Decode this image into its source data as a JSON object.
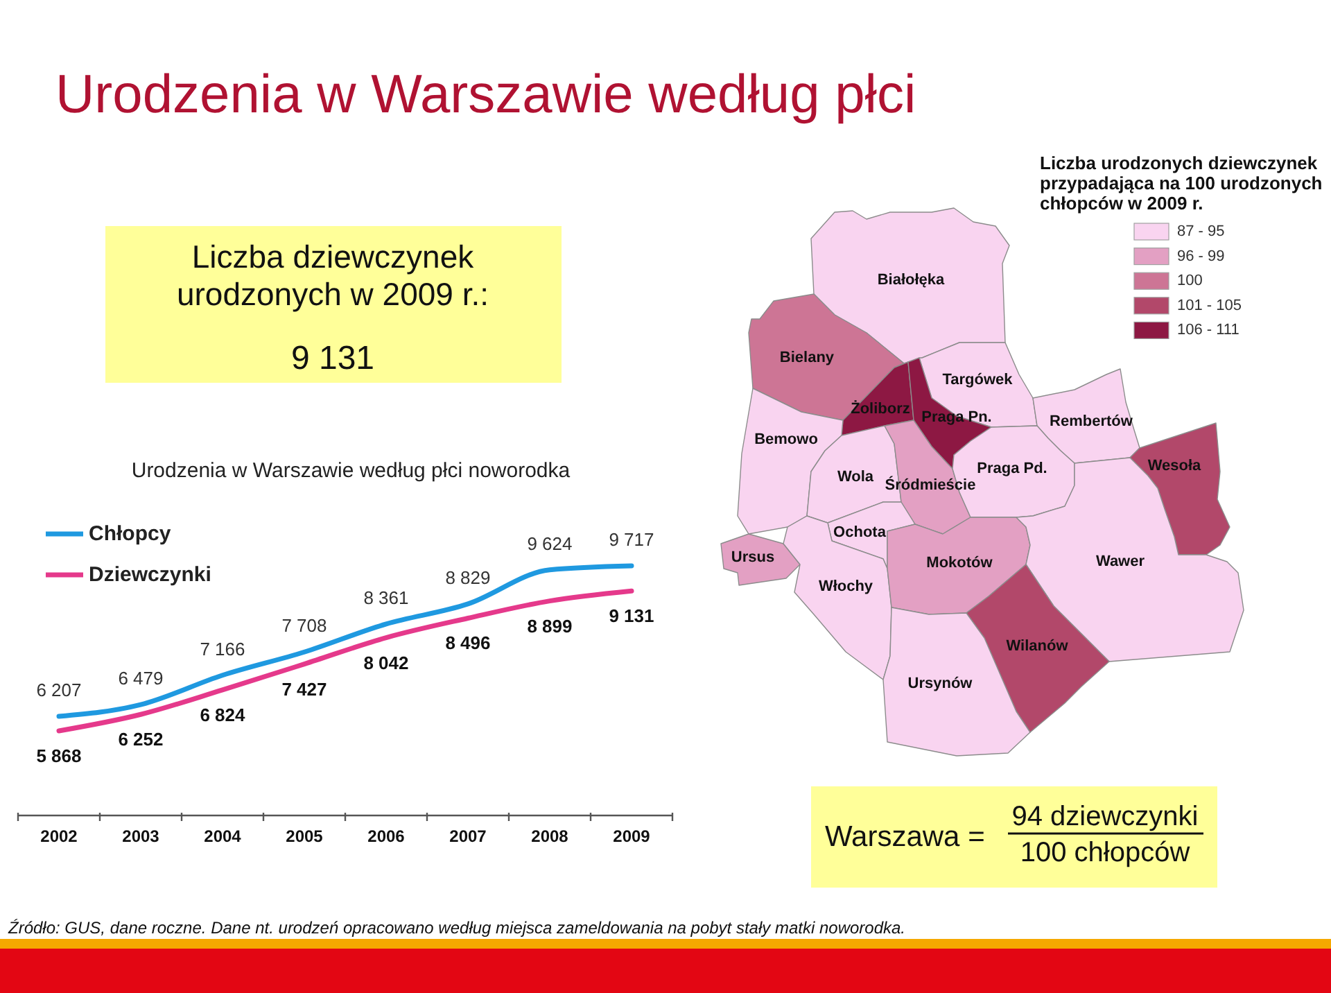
{
  "chart_data": [
    {
      "type": "other",
      "title": "Urodzenia w Warszawie według płci",
      "annotations": [
        "Źródło: GUS, dane roczne. Dane nt. urodzeń opracowano według miejsca zameldowania na pobyt stały matki noworodka."
      ]
    },
    {
      "type": "other",
      "title": "Liczba dziewczynek urodzonych w 2009 r.:",
      "annotations": [
        "9 131"
      ]
    },
    {
      "type": "other",
      "title": "Liczba urodzonych dziewczynek przypadająca na 100 urodzonych chłopców w 2009 r.",
      "categories": [
        "87 - 95",
        "96 - 99",
        "100",
        "101 - 105",
        "106 - 111"
      ],
      "colors": [
        "#f9d4f0",
        "#e3a0c3",
        "#cd7595",
        "#b2486a",
        "#8d1843"
      ]
    },
    {
      "type": "other",
      "categories": [
        "Białołęka",
        "Bielany",
        "Targówek",
        "Żoliborz",
        "Praga Pn.",
        "Rembertów",
        "Bemowo",
        "Wola",
        "Śródmieście",
        "Praga Pd.",
        "Wesoła",
        "Ochota",
        "Ursus",
        "Włochy",
        "Mokotów",
        "Wawer",
        "Wilanów",
        "Ursynów"
      ],
      "colors": [
        "#f9d4f0",
        "#cd7595",
        "#f9d4f0",
        "#8d1843",
        "#8d1843",
        "#f9d4f0",
        "#f9d4f0",
        "#f9d4f0",
        "#e3a0c3",
        "#f9d4f0",
        "#b2486a",
        "#f9d4f0",
        "#e3a0c3",
        "#f9d4f0",
        "#e3a0c3",
        "#f9d4f0",
        "#b2486a",
        "#f9d4f0"
      ]
    },
    {
      "type": "line",
      "title": "Urodzenia w Warszawie według płci noworodka",
      "categories": [
        "2002",
        "2003",
        "2004",
        "2005",
        "2006",
        "2007",
        "2008",
        "2009"
      ],
      "series": [
        {
          "name": "Chłopcy",
          "color": "#1f99e0",
          "values": [
            6207,
            6479,
            7166,
            7708,
            8361,
            8829,
            9624,
            9717
          ],
          "value_labels": [
            "6 207",
            "6 479",
            "7 166",
            "7 708",
            "8 361",
            "8 829",
            "9 624",
            "9 717"
          ]
        },
        {
          "name": "Dziewczynki",
          "color": "#e5398b",
          "values": [
            5868,
            6252,
            6824,
            7427,
            8042,
            8496,
            8899,
            9131
          ],
          "value_labels": [
            "5 868",
            "6 252",
            "6 824",
            "7 427",
            "8 042",
            "8 496",
            "8 899",
            "9 131"
          ]
        }
      ],
      "legend": "top left",
      "tick_labels": "x"
    },
    {
      "type": "other",
      "annotations": [
        "Warszawa =",
        "94 dziewczynki",
        "100 chłopców"
      ]
    }
  ]
}
